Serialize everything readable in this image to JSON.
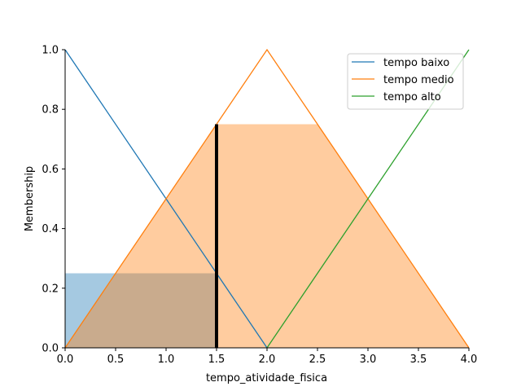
{
  "chart_data": {
    "type": "line",
    "title": "",
    "xlabel": "tempo_atividade_fisica",
    "ylabel": "Membership",
    "xlim": [
      0,
      4
    ],
    "ylim": [
      0,
      1
    ],
    "xticks": [
      "0.0",
      "0.5",
      "1.0",
      "1.5",
      "2.0",
      "2.5",
      "3.0",
      "3.5",
      "4.0"
    ],
    "yticks": [
      "0.0",
      "0.2",
      "0.4",
      "0.6",
      "0.8",
      "1.0"
    ],
    "grid": false,
    "legend_position": "top-right",
    "series": [
      {
        "name": "tempo baixo",
        "color": "#1f77b4",
        "x": [
          0,
          2
        ],
        "y": [
          1,
          0
        ]
      },
      {
        "name": "tempo medio",
        "color": "#ff7f0e",
        "x": [
          0,
          2,
          4
        ],
        "y": [
          0,
          1,
          0
        ]
      },
      {
        "name": "tempo alto",
        "color": "#2ca02c",
        "x": [
          2,
          4
        ],
        "y": [
          0,
          1
        ]
      }
    ],
    "activations": [
      {
        "series": "tempo baixo",
        "level": 0.25,
        "color": "#1f77b4",
        "x": [
          0,
          1.5,
          1.5
        ],
        "y": [
          0.25,
          0.25,
          0
        ]
      },
      {
        "series": "tempo medio",
        "level": 0.75,
        "color": "#ff7f0e",
        "x": [
          0,
          1.5,
          2.5,
          4
        ],
        "y": [
          0,
          0.75,
          0.75,
          0
        ]
      }
    ],
    "input_marker": {
      "x": 1.5,
      "y_top": 0.75,
      "color": "#000000"
    }
  }
}
